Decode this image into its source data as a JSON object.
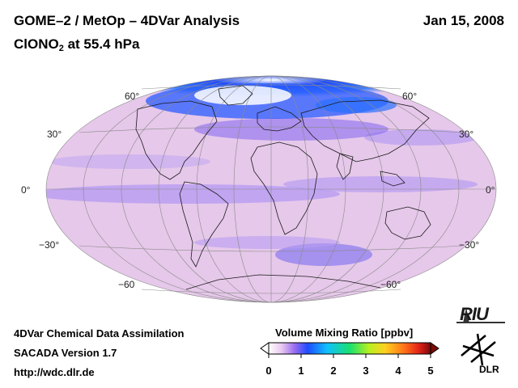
{
  "header": {
    "title_line1": "GOME–2 / MetOp – 4DVar Analysis",
    "title_line2_main": "ClONO",
    "title_line2_sub": "2",
    "title_line2_rest": " at 55.4 hPa",
    "date": "Jan 15, 2008"
  },
  "map": {
    "projection": "Mollweide (global)",
    "latitude_labels": {
      "left": [
        "60°",
        "30°",
        "0°",
        "−30°",
        "−60"
      ],
      "right": [
        "60°",
        "30°",
        "0°",
        "−30°",
        "−60°"
      ]
    }
  },
  "colorbar": {
    "title": "Volume Mixing Ratio [ppbv]",
    "ticks": [
      "0",
      "1",
      "2",
      "3",
      "4",
      "5"
    ],
    "colors": [
      "#ffffff",
      "#e8c8f0",
      "#9a6cf0",
      "#1e4cff",
      "#10c0ff",
      "#18e070",
      "#b8f020",
      "#ffd020",
      "#ff7018",
      "#e02018",
      "#7a0a0a"
    ]
  },
  "footer": {
    "line1": "4DVar Chemical Data Assimilation",
    "line2": "SACADA Version 1.7",
    "line3": "http://wdc.dlr.de"
  },
  "logos": {
    "riu": "RIU",
    "dlr": "DLR"
  }
}
